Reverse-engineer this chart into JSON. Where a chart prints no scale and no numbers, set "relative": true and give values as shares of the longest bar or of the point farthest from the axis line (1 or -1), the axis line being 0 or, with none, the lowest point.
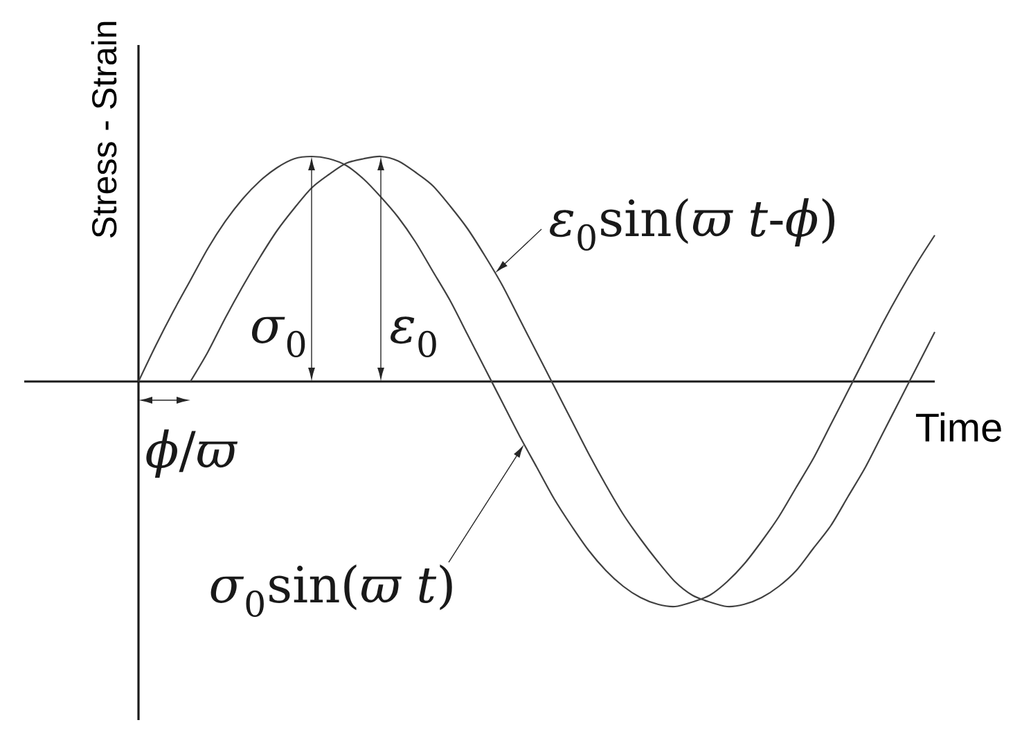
{
  "chart_data": {
    "type": "line",
    "relative": true,
    "xlabel": "Time",
    "ylabel": "Stress - Strain",
    "tick_labels": false,
    "categories": [
      null,
      null,
      null,
      null,
      null,
      null,
      null,
      null,
      null,
      null,
      null,
      null,
      null,
      null,
      null,
      null,
      null,
      null,
      null,
      null,
      null,
      null,
      null,
      null,
      null,
      null,
      null,
      null,
      null,
      null,
      null,
      null,
      null,
      null,
      null,
      null,
      null,
      null,
      null,
      null,
      null,
      null,
      null,
      null,
      null,
      null,
      null
    ],
    "series": [
      {
        "name": "*σ*$_{0}$sin(*ϖ t*)",
        "color": "#404040",
        "values": [
          0,
          0.16,
          0.31,
          0.45,
          0.59,
          0.71,
          0.81,
          0.89,
          0.95,
          0.99,
          1,
          0.99,
          0.96,
          0.9,
          0.82,
          0.73,
          0.62,
          0.49,
          0.36,
          0.21,
          0.06,
          -0.09,
          -0.24,
          -0.38,
          -0.52,
          -0.64,
          -0.75,
          -0.84,
          -0.91,
          -0.96,
          -0.99,
          -1,
          -0.98,
          -0.95,
          -0.89,
          -0.81,
          -0.71,
          -0.6,
          -0.47,
          -0.34,
          -0.19,
          -0.04,
          0.11,
          0.26,
          0.4,
          0.53,
          0.65
        ]
      },
      {
        "name": "*ε*$_{0}$sin(*ϖ t*-*ϕ*)",
        "color": "#404040",
        "values": [
          null,
          null,
          null,
          0,
          0.13,
          0.28,
          0.42,
          0.55,
          0.67,
          0.77,
          0.86,
          0.92,
          0.97,
          0.99,
          1,
          0.98,
          0.93,
          0.87,
          0.78,
          0.68,
          0.56,
          0.43,
          0.28,
          0.13,
          -0.02,
          -0.17,
          -0.32,
          -0.46,
          -0.59,
          -0.7,
          -0.8,
          -0.89,
          -0.95,
          -0.98,
          -1,
          -0.99,
          -0.96,
          -0.91,
          -0.84,
          -0.74,
          -0.64,
          -0.51,
          -0.38,
          -0.23,
          -0.08,
          0.07,
          0.22
        ]
      }
    ],
    "annotations": [
      "*σ*$_{0}$",
      "*ε*$_{0}$",
      "*ϕ*/*ϖ*"
    ]
  }
}
